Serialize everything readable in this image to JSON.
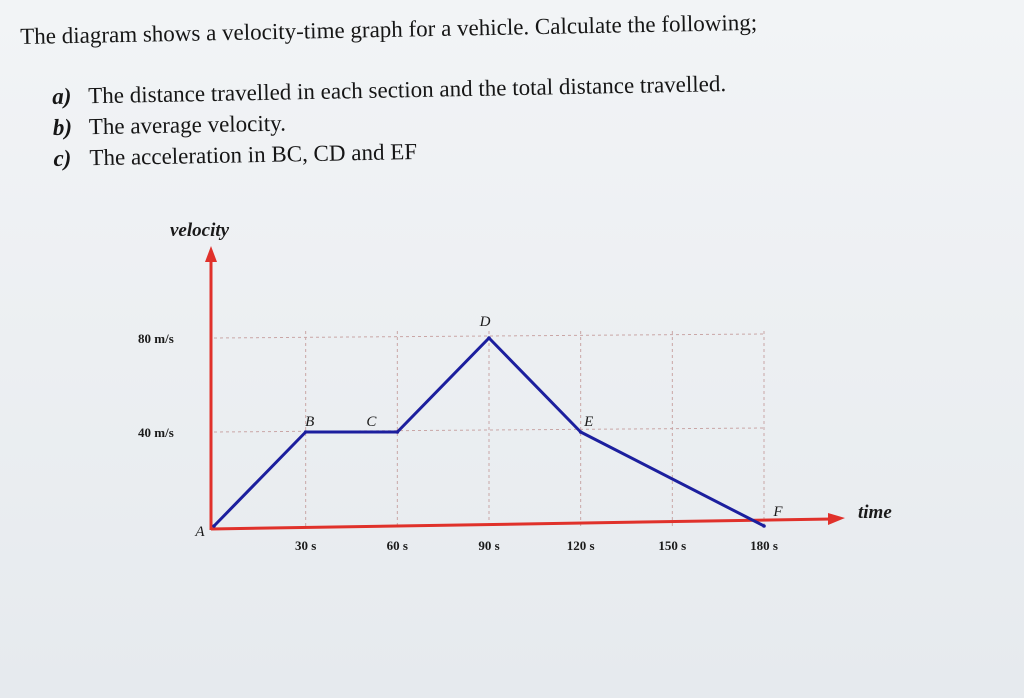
{
  "intro": "The diagram shows a velocity-time graph for a vehicle. Calculate the following;",
  "questions": [
    {
      "letter": "a)",
      "text": "The distance travelled in each section and the total distance travelled."
    },
    {
      "letter": "b)",
      "text": "The average velocity."
    },
    {
      "letter": "c)",
      "text": "The acceleration in BC, CD and EF"
    }
  ],
  "colors": {
    "axis": "#e0312b",
    "line": "#1c1f9e",
    "grid": "#c9a6a6"
  },
  "chart_data": {
    "type": "line",
    "xlabel": "time",
    "ylabel": "velocity",
    "xlim": [
      0,
      180
    ],
    "ylim": [
      0,
      80
    ],
    "x_ticks": [
      {
        "value": 30,
        "label": "30 s"
      },
      {
        "value": 60,
        "label": "60 s"
      },
      {
        "value": 90,
        "label": "90 s"
      },
      {
        "value": 120,
        "label": "120 s"
      },
      {
        "value": 150,
        "label": "150 s"
      },
      {
        "value": 180,
        "label": "180 s"
      }
    ],
    "y_ticks": [
      {
        "value": 40,
        "label": "40 m/s"
      },
      {
        "value": 80,
        "label": "80 m/s"
      }
    ],
    "grid": true,
    "points": [
      {
        "label": "A",
        "x": 0,
        "y": 0
      },
      {
        "label": "B",
        "x": 30,
        "y": 40
      },
      {
        "label": "C",
        "x": 60,
        "y": 40
      },
      {
        "label": "D",
        "x": 90,
        "y": 80
      },
      {
        "label": "E",
        "x": 120,
        "y": 40
      },
      {
        "label": "F",
        "x": 180,
        "y": 0
      }
    ]
  }
}
